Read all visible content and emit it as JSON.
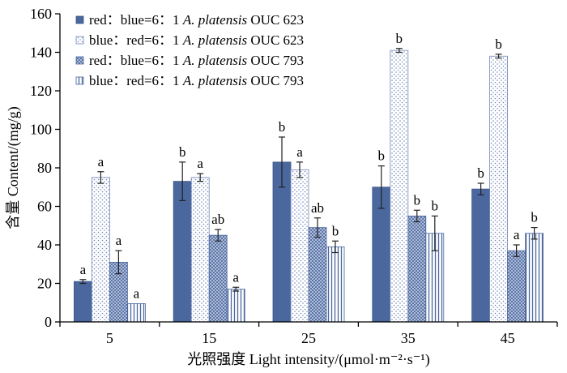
{
  "chart_data": {
    "type": "bar",
    "xlabel": "光照强度 Light intensity/(μmol·m⁻²·s⁻¹)",
    "ylabel": "含量 Content/(mg/g)",
    "categories": [
      "5",
      "15",
      "25",
      "35",
      "45"
    ],
    "ylim": [
      0,
      160
    ],
    "yticks": [
      0,
      20,
      40,
      60,
      80,
      100,
      120,
      140,
      160
    ],
    "grid": false,
    "legend_position": "top-left",
    "series": [
      {
        "legend_prefix": "red：blue=6：1",
        "legend_species": "A. platensis",
        "legend_suffix": "OUC 623",
        "pattern": "solid",
        "color": "#4a679e",
        "values": [
          21,
          73,
          83,
          70,
          69
        ],
        "errors": [
          1,
          10,
          13,
          11,
          3
        ],
        "labels": [
          "a",
          "b",
          "b",
          "b",
          "b"
        ]
      },
      {
        "legend_prefix": "blue：red=6：1",
        "legend_species": "A. platensis",
        "legend_suffix": "OUC 623",
        "pattern": "dots",
        "color": "#7388b8",
        "values": [
          75,
          75,
          79,
          141,
          138
        ],
        "errors": [
          3,
          2,
          4,
          1,
          1
        ],
        "labels": [
          "a",
          "a",
          "a",
          "b",
          "b"
        ]
      },
      {
        "legend_prefix": "red：blue=6：1",
        "legend_species": "A. platensis",
        "legend_suffix": "OUC 793",
        "pattern": "crosshatch",
        "color": "#4a679e",
        "values": [
          31,
          45,
          49,
          55,
          37
        ],
        "errors": [
          6,
          3,
          5,
          3,
          3
        ],
        "labels": [
          "a",
          "ab",
          "ab",
          "b",
          "a"
        ]
      },
      {
        "legend_prefix": "blue：red=6：1",
        "legend_species": "A. platensis",
        "legend_suffix": "OUC 793",
        "pattern": "vlines",
        "color": "#4a679e",
        "values": [
          9.5,
          17,
          39,
          46,
          46
        ],
        "errors": [
          0,
          1,
          3,
          9,
          3
        ],
        "labels": [
          "a",
          "a",
          "b",
          "b",
          "b"
        ]
      }
    ]
  }
}
